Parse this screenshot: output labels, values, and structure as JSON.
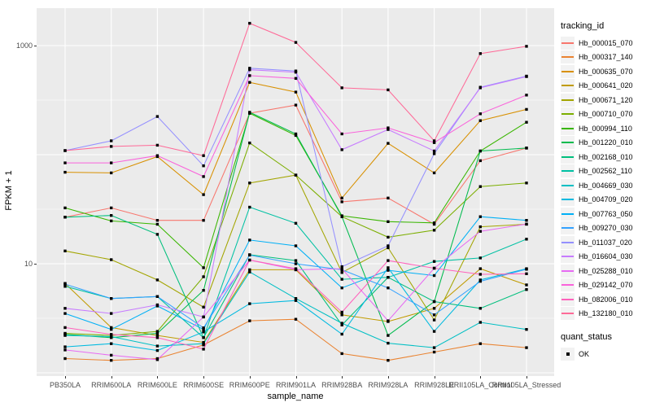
{
  "chart_data": {
    "type": "line",
    "title": "",
    "xlabel": "sample_name",
    "ylabel": "FPKM + 1",
    "y_scale": "log10",
    "y_tick_labels": [
      "10",
      "1000"
    ],
    "y_tick_values": [
      10,
      1000
    ],
    "y_major_gridlines": [
      1,
      10,
      100,
      1000
    ],
    "y_minor_gridlines": [
      3.162,
      31.62,
      316.2
    ],
    "ylim": [
      0.93,
      2250
    ],
    "grid": true,
    "legend_position": "right",
    "legend_title": "tracking_id",
    "legend2": {
      "title": "quant_status",
      "entries": [
        "OK"
      ]
    },
    "point_color": "#000000",
    "panel_bg": "#EBEBEB",
    "grid_color": "#FFFFFF",
    "categories": [
      "PB350LA",
      "RRIM600LA",
      "RRIM600LE",
      "RRIM600SE",
      "RRIM600PE",
      "RRIM901LA",
      "RRIM928BA",
      "RRIM928LA",
      "RRIM928LE",
      "RRII105LA_Control",
      "RRII105LA_Stressed"
    ],
    "series": [
      {
        "name": "Hb_000015_070",
        "color": "#F8766D",
        "values": [
          26.7,
          32.5,
          25,
          25,
          240,
          285,
          37,
          40,
          23,
          88,
          115
        ]
      },
      {
        "name": "Hb_000317_140",
        "color": "#EA8331",
        "values": [
          1.35,
          1.3,
          1.35,
          1.8,
          3.0,
          3.1,
          1.5,
          1.3,
          1.55,
          1.85,
          1.7
        ]
      },
      {
        "name": "Hb_000635_070",
        "color": "#D89000",
        "values": [
          69,
          68,
          96,
          43,
          460,
          375,
          40,
          127,
          68,
          205,
          260
        ]
      },
      {
        "name": "Hb_000641_020",
        "color": "#C09B00",
        "values": [
          6.6,
          2.6,
          2.2,
          1.9,
          8.8,
          8.8,
          3.4,
          2.95,
          3.9,
          9.0,
          6.4
        ]
      },
      {
        "name": "Hb_000671_120",
        "color": "#A3A500",
        "values": [
          13.1,
          10.9,
          7.1,
          4.0,
          55,
          65,
          8.3,
          14,
          3.05,
          21.8,
          23
        ]
      },
      {
        "name": "Hb_000710_070",
        "color": "#7CAE00",
        "values": [
          2.3,
          2.2,
          2.4,
          7.6,
          128,
          65,
          27,
          17.5,
          20.3,
          51,
          55
        ]
      },
      {
        "name": "Hb_000994_110",
        "color": "#39B600",
        "values": [
          32.5,
          24.7,
          23,
          9.2,
          240,
          150,
          27.5,
          24.3,
          23.7,
          108,
          198
        ]
      },
      {
        "name": "Hb_001220_010",
        "color": "#00BB4E",
        "values": [
          2.25,
          2.1,
          2.3,
          5.7,
          245,
          155,
          27,
          2.2,
          4.5,
          108,
          115
        ]
      },
      {
        "name": "Hb_002168_010",
        "color": "#00BF7D",
        "values": [
          26.7,
          27.7,
          18.6,
          2.1,
          12.1,
          10.7,
          2.74,
          7.5,
          4.5,
          3.9,
          5.8
        ]
      },
      {
        "name": "Hb_002562_110",
        "color": "#00C1A3",
        "values": [
          6.2,
          4.8,
          5.0,
          2.1,
          33,
          23.5,
          7.2,
          7.5,
          10.5,
          11.3,
          16.8
        ]
      },
      {
        "name": "Hb_004669_030",
        "color": "#00BFC4",
        "values": [
          2.2,
          2.15,
          1.76,
          1.85,
          8.4,
          4.8,
          2.85,
          1.87,
          1.7,
          2.9,
          2.5
        ]
      },
      {
        "name": "Hb_004709_020",
        "color": "#00BAE0",
        "values": [
          1.73,
          1.85,
          1.6,
          2.37,
          4.3,
          4.6,
          2.26,
          9.2,
          2.4,
          7.1,
          9.0
        ]
      },
      {
        "name": "Hb_007763_050",
        "color": "#00B0F6",
        "values": [
          3.5,
          2.5,
          4.1,
          2.5,
          16.5,
          14.6,
          6.0,
          8.7,
          7.8,
          27,
          25
        ]
      },
      {
        "name": "Hb_009270_030",
        "color": "#35A2FF",
        "values": [
          6.5,
          4.8,
          5.0,
          2.58,
          12,
          10,
          8.8,
          6.0,
          3.4,
          6.9,
          8.9
        ]
      },
      {
        "name": "Hb_011037_020",
        "color": "#9590FF",
        "values": [
          109,
          134,
          224,
          79,
          620,
          585,
          9.4,
          14.6,
          102,
          415,
          525
        ]
      },
      {
        "name": "Hb_016604_030",
        "color": "#C77CFF",
        "values": [
          3.9,
          3.5,
          4.2,
          3.25,
          600,
          570,
          111,
          170,
          108,
          410,
          520
        ]
      },
      {
        "name": "Hb_025288_010",
        "color": "#E76BF3",
        "values": [
          1.62,
          1.45,
          1.32,
          3.25,
          10.8,
          8.8,
          9.0,
          3.0,
          9.1,
          19.8,
          23.1
        ]
      },
      {
        "name": "Hb_029142_070",
        "color": "#FA62DB",
        "values": [
          84,
          84,
          98,
          63,
          530,
          500,
          155,
          176,
          129,
          237,
          352
        ]
      },
      {
        "name": "Hb_082006_010",
        "color": "#FF62BC",
        "values": [
          2.6,
          2.25,
          2.1,
          1.65,
          10.8,
          9.0,
          3.6,
          10.7,
          9.1,
          8.0,
          8.1
        ]
      },
      {
        "name": "Hb_132180_010",
        "color": "#FF6A98",
        "values": [
          109,
          119,
          122,
          98,
          1600,
          1070,
          410,
          393,
          134,
          845,
          985
        ]
      }
    ]
  }
}
